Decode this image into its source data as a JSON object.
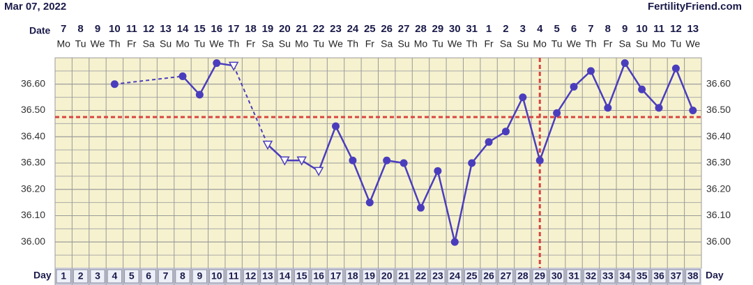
{
  "chart_data": {
    "type": "line",
    "title": "Mar 07, 2022",
    "site": "FertilityFriend.com",
    "date_axis_label": "Date",
    "day_axis_label": "Day",
    "x": [
      1,
      2,
      3,
      4,
      5,
      6,
      7,
      8,
      9,
      10,
      11,
      12,
      13,
      14,
      15,
      16,
      17,
      18,
      19,
      20,
      21,
      22,
      23,
      24,
      25,
      26,
      27,
      28,
      29,
      30,
      31,
      32,
      33,
      34,
      35,
      36,
      37,
      38
    ],
    "dates": [
      "7",
      "8",
      "9",
      "10",
      "11",
      "12",
      "13",
      "14",
      "15",
      "16",
      "17",
      "18",
      "19",
      "20",
      "21",
      "22",
      "23",
      "24",
      "25",
      "26",
      "27",
      "28",
      "29",
      "30",
      "31",
      "1",
      "2",
      "3",
      "4",
      "5",
      "6",
      "7",
      "8",
      "9",
      "10",
      "11",
      "12",
      "13"
    ],
    "weekdays": [
      "Mo",
      "Tu",
      "We",
      "Th",
      "Fr",
      "Sa",
      "Su",
      "Mo",
      "Tu",
      "We",
      "Th",
      "Fr",
      "Sa",
      "Su",
      "Mo",
      "Tu",
      "We",
      "Th",
      "Fr",
      "Sa",
      "Su",
      "Mo",
      "Tu",
      "We",
      "Th",
      "Fr",
      "Sa",
      "Su",
      "Mo",
      "Tu",
      "We",
      "Th",
      "Fr",
      "Sa",
      "Su",
      "Mo",
      "Tu",
      "We"
    ],
    "series": [
      {
        "color": "#4a3dbd",
        "values": [
          null,
          null,
          null,
          36.6,
          null,
          null,
          null,
          36.63,
          36.56,
          36.68,
          36.67,
          null,
          36.37,
          36.31,
          36.31,
          36.27,
          36.44,
          36.31,
          36.15,
          36.31,
          36.3,
          36.13,
          36.27,
          36.0,
          36.3,
          36.38,
          36.42,
          36.55,
          36.31,
          36.49,
          36.59,
          36.65,
          36.51,
          36.68,
          36.58,
          36.51,
          36.66,
          36.5
        ],
        "markers": [
          null,
          null,
          null,
          "dot",
          null,
          null,
          null,
          "dot",
          "dot",
          "dot",
          "triangle",
          null,
          "triangle",
          "triangle",
          "triangle",
          "triangle",
          "dot",
          "dot",
          "dot",
          "dot",
          "dot",
          "dot",
          "dot",
          "dot",
          "dot",
          "dot",
          "dot",
          "dot",
          "dot",
          "dot",
          "dot",
          "dot",
          "dot",
          "dot",
          "dot",
          "dot",
          "dot",
          "dot"
        ]
      }
    ],
    "xlim": [
      0.5,
      38.5
    ],
    "ylim": [
      35.9,
      36.7
    ],
    "yticks": [
      {
        "value": 36.0,
        "label": "36.00"
      },
      {
        "value": 36.1,
        "label": "36.10"
      },
      {
        "value": 36.2,
        "label": "36.20"
      },
      {
        "value": 36.3,
        "label": "36.30"
      },
      {
        "value": 36.4,
        "label": "36.40"
      },
      {
        "value": 36.5,
        "label": "36.50"
      },
      {
        "value": 36.6,
        "label": "36.60"
      }
    ],
    "coverline": 36.475,
    "coverline_color": "#d9443f",
    "ovulation_day": 29,
    "grid": true
  }
}
